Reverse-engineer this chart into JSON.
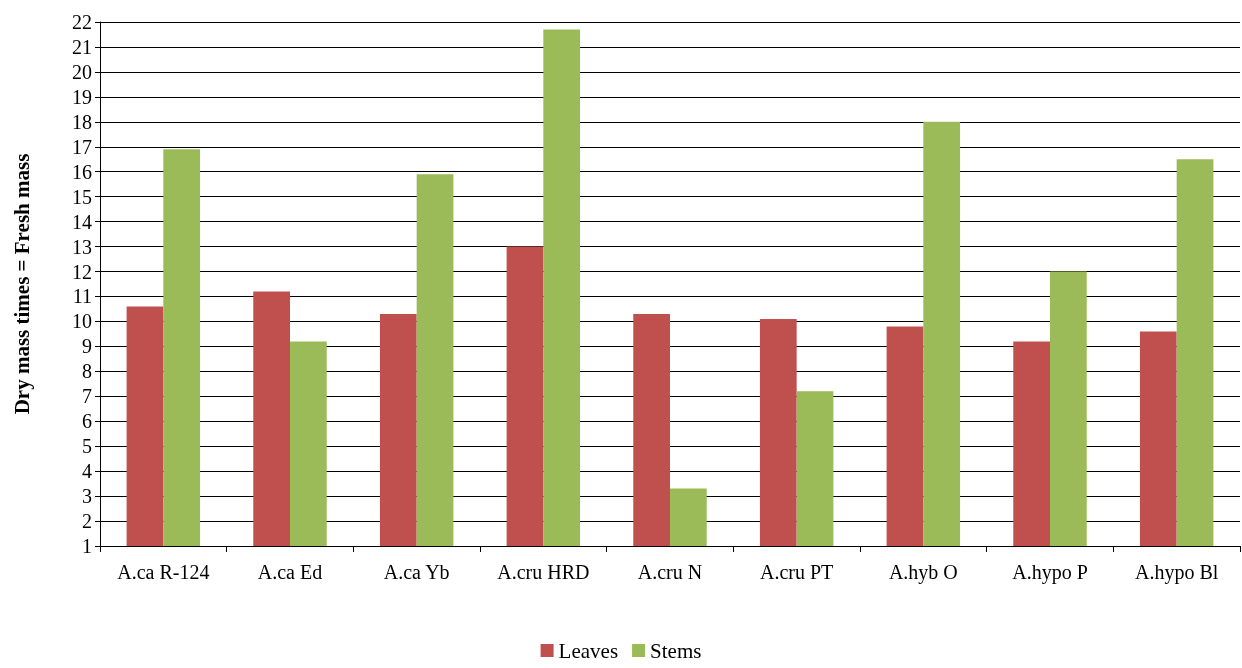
{
  "chart_data": {
    "type": "bar",
    "ylabel": "Dry mass times = Fresh mass",
    "categories": [
      "A.ca R-124",
      "A.ca Ed",
      "A.ca Yb",
      "A.cru HRD",
      "A.cru N",
      "A.cru PT",
      "A.hyb O",
      "A.hypo P",
      "A.hypo Bl"
    ],
    "series": [
      {
        "name": "Leaves",
        "color": "#c0504d",
        "values": [
          10.6,
          11.2,
          10.3,
          13.0,
          10.3,
          10.1,
          9.8,
          9.2,
          9.6
        ]
      },
      {
        "name": "Stems",
        "color": "#9bbb59",
        "values": [
          16.9,
          9.2,
          15.9,
          21.7,
          3.3,
          7.2,
          18.0,
          12.0,
          16.5
        ]
      }
    ],
    "ylim": [
      1,
      22
    ],
    "yticks": [
      1,
      2,
      3,
      4,
      5,
      6,
      7,
      8,
      9,
      10,
      11,
      12,
      13,
      14,
      15,
      16,
      17,
      18,
      19,
      20,
      21,
      22
    ],
    "grid": "y",
    "legend": "bottom"
  }
}
